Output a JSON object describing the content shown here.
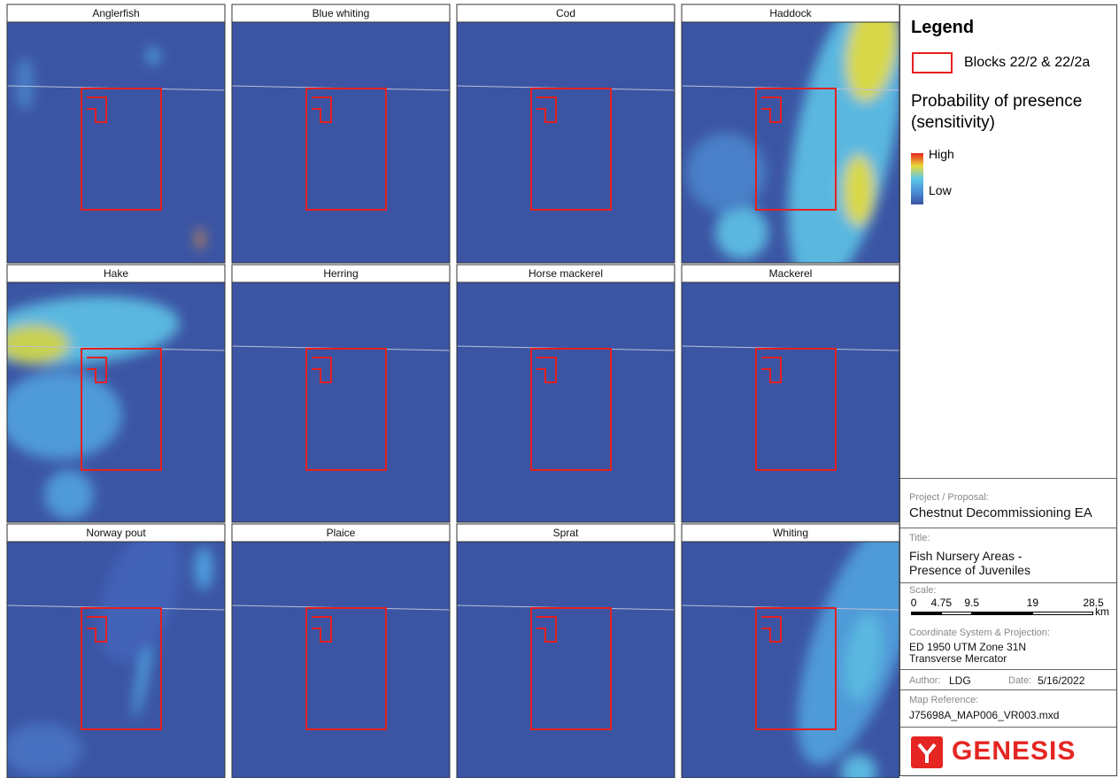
{
  "panels": [
    {
      "title": "Anglerfish"
    },
    {
      "title": "Blue whiting"
    },
    {
      "title": "Cod"
    },
    {
      "title": "Haddock"
    },
    {
      "title": "Hake"
    },
    {
      "title": "Herring"
    },
    {
      "title": "Horse mackerel"
    },
    {
      "title": "Mackerel"
    },
    {
      "title": "Norway pout"
    },
    {
      "title": "Plaice"
    },
    {
      "title": "Sprat"
    },
    {
      "title": "Whiting"
    }
  ],
  "legend": {
    "title": "Legend",
    "blocks_label": "Blocks 22/2 & 22/2a",
    "probability_title": [
      "Probability of presence",
      "(sensitivity)"
    ],
    "high": "High",
    "low": "Low"
  },
  "info": {
    "project_label": "Project / Proposal:",
    "project": "Chestnut Decommissioning EA",
    "title_label": "Title:",
    "title_lines": [
      "Fish Nursery Areas -",
      "Presence of Juveniles"
    ],
    "scale_label": "Scale:",
    "scale_ticks": [
      0,
      4.75,
      9.5,
      19,
      28.5
    ],
    "scale_unit": "km",
    "crs_label": "Coordinate System & Projection:",
    "crs_lines": [
      "ED 1950 UTM Zone 31N",
      "Transverse Mercator"
    ],
    "author_label": "Author:",
    "author": "LDG",
    "date_label": "Date:",
    "date": "5/16/2022",
    "ref_label": "Map Reference:",
    "ref": "J75698A_MAP006_VR003.mxd",
    "logo": "GENESIS"
  }
}
